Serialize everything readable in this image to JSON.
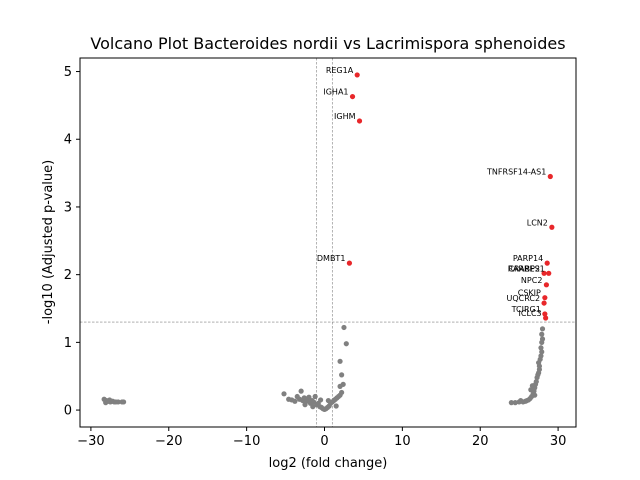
{
  "chart_data": {
    "type": "scatter",
    "title": "Volcano Plot Bacteroides nordii vs Lacrimispora sphenoides",
    "xlabel": "log2 (fold change)",
    "ylabel": "-log10 (Adjusted p-value)",
    "xlim": [
      -31.4,
      32.3
    ],
    "ylim": [
      -0.25,
      5.2
    ],
    "xticks": [
      -30,
      -20,
      -10,
      0,
      10,
      20,
      30
    ],
    "yticks": [
      0,
      1,
      2,
      3,
      4,
      5
    ],
    "thresholds": {
      "vertical": [
        -1,
        1
      ],
      "horizontal": 1.3
    },
    "colors": {
      "significant": "#e8272a",
      "not_significant": "#808080",
      "threshold_line": "#808080"
    },
    "grid": false,
    "legend": "none",
    "significant_points": [
      {
        "label": "REG1A",
        "x": 4.2,
        "y": 4.95
      },
      {
        "label": "IGHA1",
        "x": 3.6,
        "y": 4.63
      },
      {
        "label": "IGHM",
        "x": 4.5,
        "y": 4.27
      },
      {
        "label": "TNFRSF14-AS1",
        "x": 29.0,
        "y": 3.45
      },
      {
        "label": "LCN2",
        "x": 29.2,
        "y": 2.7
      },
      {
        "label": "DMBT1",
        "x": 3.2,
        "y": 2.17
      },
      {
        "label": "PARP14",
        "x": 28.6,
        "y": 2.17
      },
      {
        "label": "CRABP2",
        "x": 28.2,
        "y": 2.02
      },
      {
        "label": "RARRES1",
        "x": 28.8,
        "y": 2.02
      },
      {
        "label": "NPC2",
        "x": 28.5,
        "y": 1.85
      },
      {
        "label": "CSKIP",
        "x": 28.3,
        "y": 1.66
      },
      {
        "label": "UQCRC2",
        "x": 28.2,
        "y": 1.58
      },
      {
        "label": "TCIRG1",
        "x": 28.3,
        "y": 1.42
      },
      {
        "label": "ICLC3",
        "x": 28.4,
        "y": 1.36
      }
    ],
    "nonsignificant_points": [
      {
        "x": -28.3,
        "y": 0.16
      },
      {
        "x": -28.0,
        "y": 0.14
      },
      {
        "x": -27.8,
        "y": 0.13
      },
      {
        "x": -27.5,
        "y": 0.12
      },
      {
        "x": -27.2,
        "y": 0.13
      },
      {
        "x": -27.0,
        "y": 0.12
      },
      {
        "x": -26.8,
        "y": 0.12
      },
      {
        "x": -26.5,
        "y": 0.12
      },
      {
        "x": -26.0,
        "y": 0.12
      },
      {
        "x": -25.8,
        "y": 0.12
      },
      {
        "x": -28.1,
        "y": 0.11
      },
      {
        "x": -27.6,
        "y": 0.15
      },
      {
        "x": -5.2,
        "y": 0.24
      },
      {
        "x": -4.6,
        "y": 0.16
      },
      {
        "x": -4.2,
        "y": 0.15
      },
      {
        "x": -3.8,
        "y": 0.13
      },
      {
        "x": -3.5,
        "y": 0.2
      },
      {
        "x": -3.2,
        "y": 0.16
      },
      {
        "x": -3.0,
        "y": 0.28
      },
      {
        "x": -2.8,
        "y": 0.14
      },
      {
        "x": -2.6,
        "y": 0.18
      },
      {
        "x": -2.4,
        "y": 0.12
      },
      {
        "x": -2.2,
        "y": 0.15
      },
      {
        "x": -2.0,
        "y": 0.19
      },
      {
        "x": -1.8,
        "y": 0.1
      },
      {
        "x": -1.6,
        "y": 0.14
      },
      {
        "x": -1.4,
        "y": 0.12
      },
      {
        "x": -1.2,
        "y": 0.2
      },
      {
        "x": -1.0,
        "y": 0.08
      },
      {
        "x": -0.8,
        "y": 0.1
      },
      {
        "x": -0.6,
        "y": 0.05
      },
      {
        "x": -0.4,
        "y": 0.04
      },
      {
        "x": -0.2,
        "y": 0.02
      },
      {
        "x": 0.0,
        "y": 0.01
      },
      {
        "x": 0.2,
        "y": 0.02
      },
      {
        "x": 0.4,
        "y": 0.04
      },
      {
        "x": 0.6,
        "y": 0.06
      },
      {
        "x": 0.8,
        "y": 0.1
      },
      {
        "x": 1.0,
        "y": 0.12
      },
      {
        "x": 1.2,
        "y": 0.14
      },
      {
        "x": 1.4,
        "y": 0.16
      },
      {
        "x": 1.6,
        "y": 0.18
      },
      {
        "x": 1.8,
        "y": 0.2
      },
      {
        "x": 2.0,
        "y": 0.22
      },
      {
        "x": 2.2,
        "y": 0.26
      },
      {
        "x": 2.0,
        "y": 0.35
      },
      {
        "x": 2.4,
        "y": 0.38
      },
      {
        "x": 2.2,
        "y": 0.52
      },
      {
        "x": 2.0,
        "y": 0.72
      },
      {
        "x": 2.8,
        "y": 0.98
      },
      {
        "x": 2.5,
        "y": 1.22
      },
      {
        "x": -0.5,
        "y": 0.15
      },
      {
        "x": 0.5,
        "y": 0.14
      },
      {
        "x": -1.5,
        "y": 0.05
      },
      {
        "x": 1.5,
        "y": 0.06
      },
      {
        "x": -2.5,
        "y": 0.08
      },
      {
        "x": 24.0,
        "y": 0.11
      },
      {
        "x": 24.5,
        "y": 0.11
      },
      {
        "x": 25.0,
        "y": 0.12
      },
      {
        "x": 25.5,
        "y": 0.12
      },
      {
        "x": 25.8,
        "y": 0.13
      },
      {
        "x": 26.0,
        "y": 0.14
      },
      {
        "x": 26.2,
        "y": 0.15
      },
      {
        "x": 26.4,
        "y": 0.17
      },
      {
        "x": 26.6,
        "y": 0.2
      },
      {
        "x": 26.8,
        "y": 0.24
      },
      {
        "x": 26.9,
        "y": 0.28
      },
      {
        "x": 27.0,
        "y": 0.33
      },
      {
        "x": 27.1,
        "y": 0.38
      },
      {
        "x": 27.2,
        "y": 0.42
      },
      {
        "x": 27.3,
        "y": 0.48
      },
      {
        "x": 27.4,
        "y": 0.52
      },
      {
        "x": 27.5,
        "y": 0.55
      },
      {
        "x": 27.6,
        "y": 0.6
      },
      {
        "x": 27.6,
        "y": 0.65
      },
      {
        "x": 27.5,
        "y": 0.7
      },
      {
        "x": 27.7,
        "y": 0.75
      },
      {
        "x": 27.8,
        "y": 0.8
      },
      {
        "x": 27.9,
        "y": 0.86
      },
      {
        "x": 27.8,
        "y": 0.92
      },
      {
        "x": 27.9,
        "y": 1.0
      },
      {
        "x": 28.0,
        "y": 1.05
      },
      {
        "x": 27.9,
        "y": 1.12
      },
      {
        "x": 28.0,
        "y": 1.2
      },
      {
        "x": 26.5,
        "y": 0.3
      },
      {
        "x": 26.7,
        "y": 0.36
      },
      {
        "x": 27.0,
        "y": 0.22
      },
      {
        "x": 25.2,
        "y": 0.14
      }
    ]
  }
}
